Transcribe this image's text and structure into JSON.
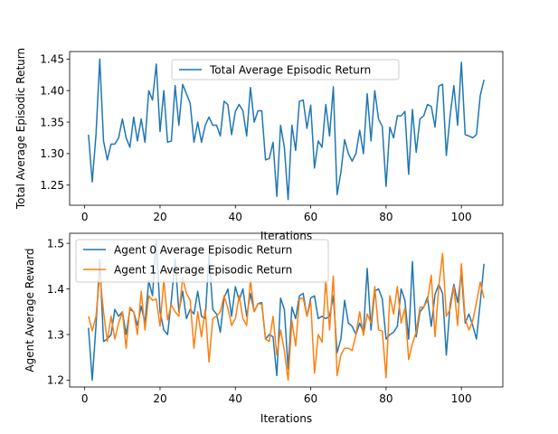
{
  "chart_data": [
    {
      "type": "line",
      "xlabel": "Iterations",
      "ylabel": "Total Average Episodic Return",
      "xlim": [
        -4,
        111
      ],
      "ylim": [
        1.218,
        1.462
      ],
      "xticks": [
        0,
        20,
        40,
        60,
        80,
        100
      ],
      "yticks": [
        1.25,
        1.3,
        1.35,
        1.4,
        1.45
      ],
      "ytick_labels": [
        "1.25",
        "1.30",
        "1.35",
        "1.40",
        "1.45"
      ],
      "grid": false,
      "legend_position": "upper-center",
      "series": [
        {
          "name": "Total Average Episodic Return",
          "color": "#1f77b4",
          "x": [
            1,
            2,
            3,
            4,
            5,
            6,
            7,
            8,
            9,
            10,
            11,
            12,
            13,
            14,
            15,
            16,
            17,
            18,
            19,
            20,
            21,
            22,
            23,
            24,
            25,
            26,
            27,
            28,
            29,
            30,
            31,
            32,
            33,
            34,
            35,
            36,
            37,
            38,
            39,
            40,
            41,
            42,
            43,
            44,
            45,
            46,
            47,
            48,
            49,
            50,
            51,
            52,
            53,
            54,
            55,
            56,
            57,
            58,
            59,
            60,
            61,
            62,
            63,
            64,
            65,
            66,
            67,
            68,
            69,
            70,
            71,
            72,
            73,
            74,
            75,
            76,
            77,
            78,
            79,
            80,
            81,
            82,
            83,
            84,
            85,
            86,
            87,
            88,
            89,
            90,
            91,
            92,
            93,
            94,
            95,
            96,
            97,
            98,
            99,
            100,
            101,
            102,
            103,
            104,
            105,
            106
          ],
          "values": [
            1.33,
            1.255,
            1.33,
            1.45,
            1.32,
            1.29,
            1.315,
            1.315,
            1.325,
            1.355,
            1.325,
            1.31,
            1.358,
            1.32,
            1.355,
            1.318,
            1.4,
            1.385,
            1.442,
            1.335,
            1.4,
            1.318,
            1.32,
            1.408,
            1.345,
            1.41,
            1.395,
            1.38,
            1.318,
            1.35,
            1.318,
            1.345,
            1.358,
            1.345,
            1.345,
            1.328,
            1.383,
            1.378,
            1.33,
            1.367,
            1.378,
            1.368,
            1.328,
            1.405,
            1.35,
            1.368,
            1.368,
            1.29,
            1.292,
            1.318,
            1.232,
            1.345,
            1.31,
            1.227,
            1.345,
            1.305,
            1.383,
            1.385,
            1.34,
            1.377,
            1.277,
            1.32,
            1.31,
            1.378,
            1.328,
            1.406,
            1.235,
            1.27,
            1.322,
            1.3,
            1.288,
            1.3,
            1.337,
            1.3,
            1.395,
            1.32,
            1.4,
            1.355,
            1.343,
            1.248,
            1.342,
            1.325,
            1.36,
            1.36,
            1.367,
            1.267,
            1.37,
            1.302,
            1.355,
            1.36,
            1.378,
            1.375,
            1.342,
            1.407,
            1.41,
            1.297,
            1.36,
            1.408,
            1.345,
            1.445,
            1.33,
            1.328,
            1.325,
            1.33,
            1.392,
            1.417
          ]
        }
      ]
    },
    {
      "type": "line",
      "xlabel": "Iterations",
      "ylabel": "Agent Average Reward",
      "xlim": [
        -4,
        111
      ],
      "ylim": [
        1.185,
        1.522
      ],
      "xticks": [
        0,
        20,
        40,
        60,
        80,
        100
      ],
      "yticks": [
        1.2,
        1.3,
        1.4,
        1.5
      ],
      "ytick_labels": [
        "1.2",
        "1.3",
        "1.4",
        "1.5"
      ],
      "grid": false,
      "legend_position": "upper-left",
      "series": [
        {
          "name": "Agent 0 Average Episodic Return",
          "color": "#1f77b4",
          "x": [
            1,
            2,
            3,
            4,
            5,
            6,
            7,
            8,
            9,
            10,
            11,
            12,
            13,
            14,
            15,
            16,
            17,
            18,
            19,
            20,
            21,
            22,
            23,
            24,
            25,
            26,
            27,
            28,
            29,
            30,
            31,
            32,
            33,
            34,
            35,
            36,
            37,
            38,
            39,
            40,
            41,
            42,
            43,
            44,
            45,
            46,
            47,
            48,
            49,
            50,
            51,
            52,
            53,
            54,
            55,
            56,
            57,
            58,
            59,
            60,
            61,
            62,
            63,
            64,
            65,
            66,
            67,
            68,
            69,
            70,
            71,
            72,
            73,
            74,
            75,
            76,
            77,
            78,
            79,
            80,
            81,
            82,
            83,
            84,
            85,
            86,
            87,
            88,
            89,
            90,
            91,
            92,
            93,
            94,
            95,
            96,
            97,
            98,
            99,
            100,
            101,
            102,
            103,
            104,
            105,
            106
          ],
          "values": [
            1.315,
            1.2,
            1.32,
            1.465,
            1.285,
            1.29,
            1.3,
            1.355,
            1.34,
            1.35,
            1.3,
            1.355,
            1.35,
            1.32,
            1.362,
            1.325,
            1.418,
            1.385,
            1.505,
            1.35,
            1.31,
            1.3,
            1.375,
            1.465,
            1.35,
            1.395,
            1.335,
            1.355,
            1.345,
            1.395,
            1.34,
            1.335,
            1.475,
            1.355,
            1.345,
            1.305,
            1.38,
            1.4,
            1.34,
            1.405,
            1.375,
            1.4,
            1.34,
            1.39,
            1.35,
            1.368,
            1.37,
            1.29,
            1.3,
            1.295,
            1.21,
            1.38,
            1.355,
            1.225,
            1.36,
            1.335,
            1.385,
            1.39,
            1.34,
            1.38,
            1.385,
            1.335,
            1.34,
            1.335,
            1.34,
            1.385,
            1.26,
            1.29,
            1.375,
            1.325,
            1.318,
            1.3,
            1.325,
            1.305,
            1.445,
            1.31,
            1.395,
            1.4,
            1.378,
            1.29,
            1.3,
            1.305,
            1.318,
            1.4,
            1.375,
            1.29,
            1.46,
            1.295,
            1.35,
            1.36,
            1.382,
            1.318,
            1.388,
            1.41,
            1.39,
            1.255,
            1.365,
            1.41,
            1.37,
            1.435,
            1.325,
            1.345,
            1.32,
            1.29,
            1.37,
            1.455
          ]
        },
        {
          "name": "Agent 1 Average Episodic Return",
          "color": "#ff7f0e",
          "x": [
            1,
            2,
            3,
            4,
            5,
            6,
            7,
            8,
            9,
            10,
            11,
            12,
            13,
            14,
            15,
            16,
            17,
            18,
            19,
            20,
            21,
            22,
            23,
            24,
            25,
            26,
            27,
            28,
            29,
            30,
            31,
            32,
            33,
            34,
            35,
            36,
            37,
            38,
            39,
            40,
            41,
            42,
            43,
            44,
            45,
            46,
            47,
            48,
            49,
            50,
            51,
            52,
            53,
            54,
            55,
            56,
            57,
            58,
            59,
            60,
            61,
            62,
            63,
            64,
            65,
            66,
            67,
            68,
            69,
            70,
            71,
            72,
            73,
            74,
            75,
            76,
            77,
            78,
            79,
            80,
            81,
            82,
            83,
            84,
            85,
            86,
            87,
            88,
            89,
            90,
            91,
            92,
            93,
            94,
            95,
            96,
            97,
            98,
            99,
            100,
            101,
            102,
            103,
            104,
            105,
            106
          ],
          "values": [
            1.34,
            1.308,
            1.34,
            1.432,
            1.35,
            1.285,
            1.34,
            1.29,
            1.325,
            1.35,
            1.27,
            1.36,
            1.35,
            1.3,
            1.395,
            1.31,
            1.385,
            1.375,
            1.378,
            1.318,
            1.42,
            1.332,
            1.365,
            1.35,
            1.34,
            1.425,
            1.39,
            1.375,
            1.27,
            1.35,
            1.295,
            1.355,
            1.24,
            1.335,
            1.34,
            1.35,
            1.385,
            1.358,
            1.32,
            1.335,
            1.385,
            1.335,
            1.32,
            1.42,
            1.35,
            1.368,
            1.366,
            1.29,
            1.285,
            1.34,
            1.255,
            1.31,
            1.265,
            1.2,
            1.33,
            1.275,
            1.378,
            1.38,
            1.34,
            1.372,
            1.215,
            1.3,
            1.283,
            1.42,
            1.31,
            1.428,
            1.21,
            1.255,
            1.27,
            1.27,
            1.265,
            1.3,
            1.35,
            1.298,
            1.345,
            1.325,
            1.405,
            1.31,
            1.308,
            1.205,
            1.385,
            1.345,
            1.405,
            1.325,
            1.358,
            1.245,
            1.28,
            1.305,
            1.36,
            1.36,
            1.375,
            1.43,
            1.295,
            1.405,
            1.478,
            1.34,
            1.355,
            1.405,
            1.32,
            1.455,
            1.335,
            1.31,
            1.33,
            1.37,
            1.415,
            1.38
          ]
        }
      ]
    }
  ]
}
